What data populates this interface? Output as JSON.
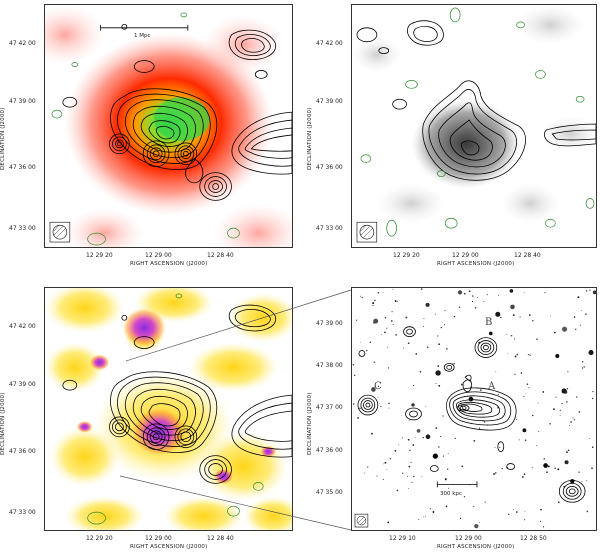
{
  "axes": {
    "ylabel": "DECLINATION  (J2000)",
    "xlabel": "RIGHT ASCENSION  (J2000)"
  },
  "panels": {
    "p1": {
      "yticks": [
        "47 42 00",
        "47 39 00",
        "47 36 00",
        "47 33 00"
      ],
      "xticks": [
        "12 29 20",
        "12 29 00",
        "12 28 40"
      ],
      "scalebar": "1 Mpc"
    },
    "p2": {
      "yticks": [
        "47 42 00",
        "47 39 00",
        "47 36 00",
        "47 33 00"
      ],
      "xticks": [
        "12 29 20",
        "12 29 00",
        "12 28 40"
      ]
    },
    "p3": {
      "yticks": [
        "47 42 00",
        "47 39 00",
        "47 36 00",
        "47 33 00"
      ],
      "xticks": [
        "12 29 20",
        "12 29 00",
        "12 28 40"
      ]
    },
    "p4": {
      "yticks": [
        "47 39 00",
        "47 38 00",
        "47 37 00",
        "47 36 00",
        "47 35 00"
      ],
      "xticks": [
        "12 29 10",
        "12 29 00",
        "12 28 50"
      ],
      "scalebar": "300 kpc",
      "sources": [
        "A",
        "B",
        "C"
      ]
    }
  },
  "colors": {
    "radio_contour": "#000000",
    "negative_contour": "#2f8a2f",
    "xray_core": "#33cc33",
    "xray_halo": "#ff2200",
    "optical_peak": "#9a2fd6",
    "optical_mid": "#ffdd33"
  }
}
